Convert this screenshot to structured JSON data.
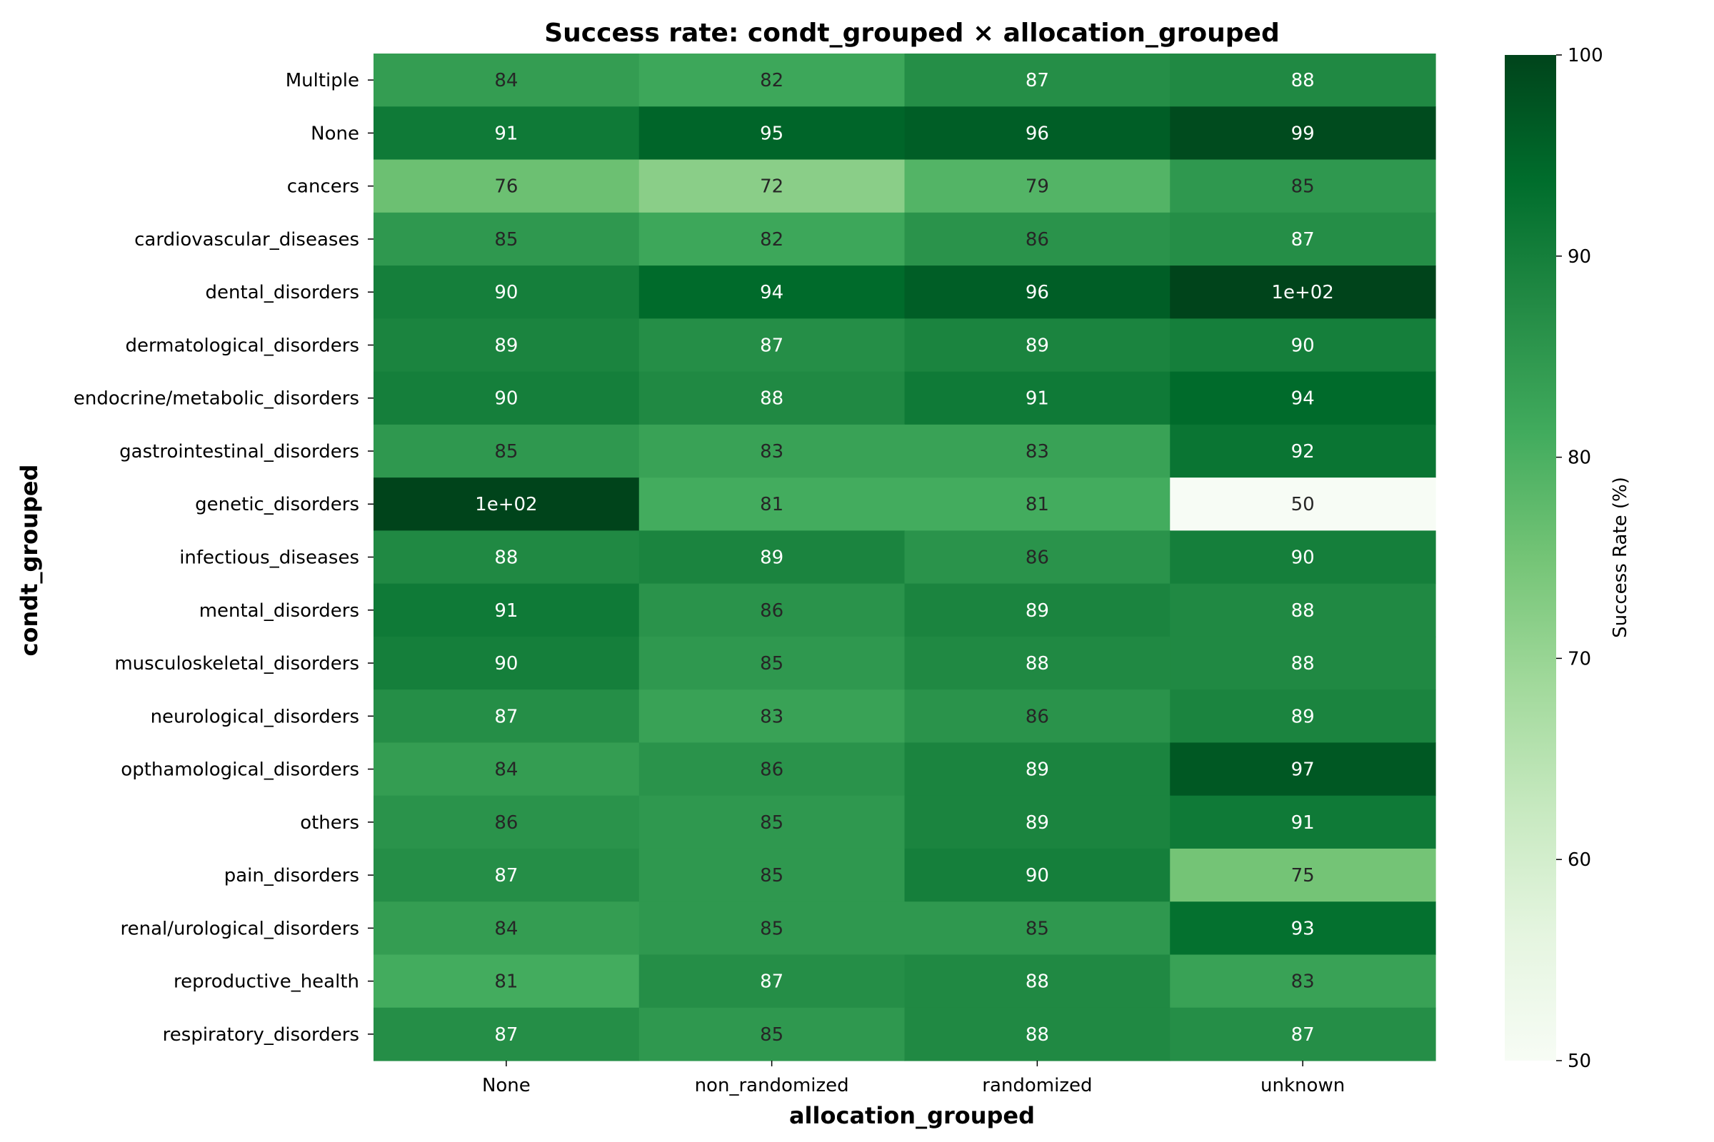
{
  "chart_data": {
    "type": "heatmap",
    "title": "Success rate: condt_grouped × allocation_grouped",
    "xlabel": "allocation_grouped",
    "ylabel": "condt_grouped",
    "x_categories": [
      "None",
      "non_randomized",
      "randomized",
      "unknown"
    ],
    "y_categories": [
      "Multiple",
      "None",
      "cancers",
      "cardiovascular_diseases",
      "dental_disorders",
      "dermatological_disorders",
      "endocrine/metabolic_disorders",
      "gastrointestinal_disorders",
      "genetic_disorders",
      "infectious_diseases",
      "mental_disorders",
      "musculoskeletal_disorders",
      "neurological_disorders",
      "opthamological_disorders",
      "others",
      "pain_disorders",
      "renal/urological_disorders",
      "reproductive_health",
      "respiratory_disorders"
    ],
    "values": [
      [
        84,
        82,
        87,
        88
      ],
      [
        91,
        95,
        96,
        99
      ],
      [
        76,
        72,
        79,
        85
      ],
      [
        85,
        82,
        86,
        87
      ],
      [
        90,
        94,
        96,
        100
      ],
      [
        89,
        87,
        89,
        90
      ],
      [
        90,
        88,
        91,
        94
      ],
      [
        85,
        83,
        83,
        92
      ],
      [
        100,
        81,
        81,
        50
      ],
      [
        88,
        89,
        86,
        90
      ],
      [
        91,
        86,
        89,
        88
      ],
      [
        90,
        85,
        88,
        88
      ],
      [
        87,
        83,
        86,
        89
      ],
      [
        84,
        86,
        89,
        97
      ],
      [
        86,
        85,
        89,
        91
      ],
      [
        87,
        85,
        90,
        75
      ],
      [
        84,
        85,
        85,
        93
      ],
      [
        81,
        87,
        88,
        83
      ],
      [
        87,
        85,
        88,
        87
      ]
    ],
    "annotations": [
      [
        "84",
        "82",
        "87",
        "88"
      ],
      [
        "91",
        "95",
        "96",
        "99"
      ],
      [
        "76",
        "72",
        "79",
        "85"
      ],
      [
        "85",
        "82",
        "86",
        "87"
      ],
      [
        "90",
        "94",
        "96",
        "1e+02"
      ],
      [
        "89",
        "87",
        "89",
        "90"
      ],
      [
        "90",
        "88",
        "91",
        "94"
      ],
      [
        "85",
        "83",
        "83",
        "92"
      ],
      [
        "1e+02",
        "81",
        "81",
        "50"
      ],
      [
        "88",
        "89",
        "86",
        "90"
      ],
      [
        "91",
        "86",
        "89",
        "88"
      ],
      [
        "90",
        "85",
        "88",
        "88"
      ],
      [
        "87",
        "83",
        "86",
        "89"
      ],
      [
        "84",
        "86",
        "89",
        "97"
      ],
      [
        "86",
        "85",
        "89",
        "91"
      ],
      [
        "87",
        "85",
        "90",
        "75"
      ],
      [
        "84",
        "85",
        "85",
        "93"
      ],
      [
        "81",
        "87",
        "88",
        "83"
      ],
      [
        "87",
        "85",
        "88",
        "87"
      ]
    ],
    "colormap": "Greens",
    "vmin": 50,
    "vmax": 100,
    "colorbar": {
      "label": "Success Rate (%)",
      "ticks": [
        50,
        60,
        70,
        80,
        90,
        100
      ]
    }
  }
}
